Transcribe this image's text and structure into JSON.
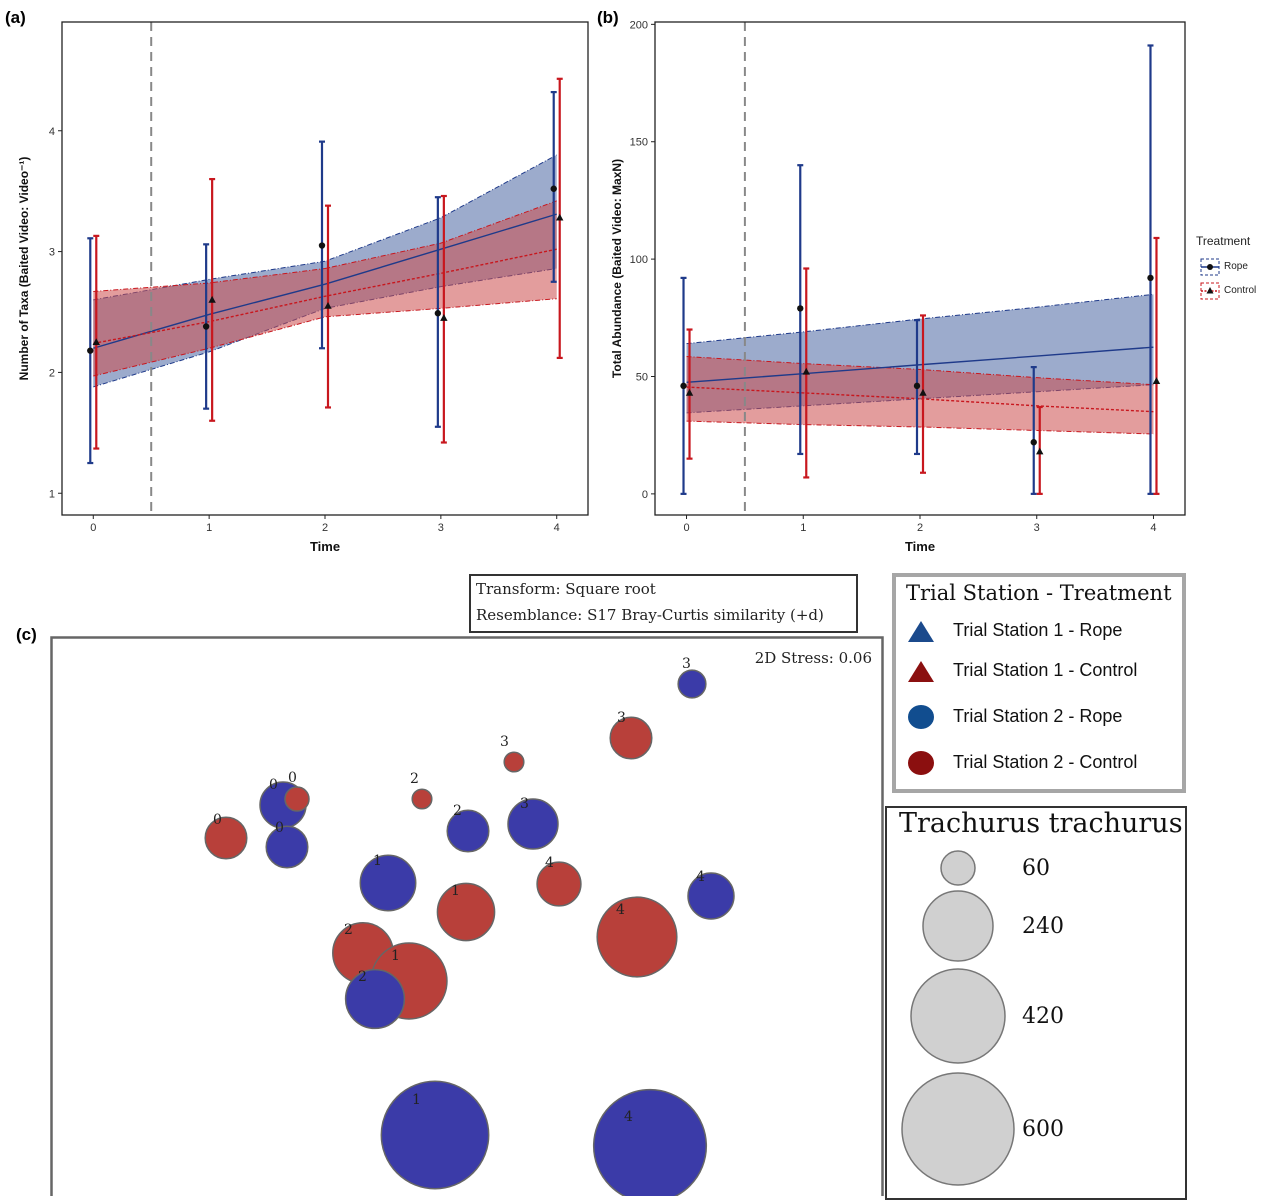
{
  "panels": {
    "a": {
      "label": "(a)"
    },
    "b": {
      "label": "(b)"
    },
    "c": {
      "label": "(c)"
    }
  },
  "colors": {
    "rope": "#1f3a8a",
    "control": "#c8171e",
    "rope_fill": "#4a66a3",
    "control_fill": "#cc4d4d",
    "nmds_rope": "#3b3ba8",
    "nmds_control": "#b8403a",
    "legend_rope": "#1b4a8c",
    "legend_control": "#8b1010",
    "station2_rope": "#114d8f",
    "station2_control": "#8b0f0f"
  },
  "legend_a_b": {
    "title": "Treatment",
    "items": [
      {
        "label": "Rope",
        "marker": "circle"
      },
      {
        "label": "Control",
        "marker": "triangle"
      }
    ]
  },
  "nmds_info": {
    "transform": "Transform: Square root",
    "resemblance": "Resemblance: S17 Bray-Curtis similarity (+d)",
    "stress": "2D Stress: 0.06"
  },
  "nmds_legend": {
    "title": "Trial Station - Treatment",
    "items": [
      {
        "label": "Trial Station 1 - Rope",
        "marker": "triangle-icon",
        "color": "#1b4a8c"
      },
      {
        "label": "Trial Station 1 - Control",
        "marker": "triangle-icon",
        "color": "#8b1010"
      },
      {
        "label": "Trial Station 2 - Rope",
        "marker": "circle-icon",
        "color": "#114d8f"
      },
      {
        "label": "Trial Station 2 - Control",
        "marker": "circle-icon",
        "color": "#8b0f0f"
      }
    ]
  },
  "size_legend": {
    "title": "Trachurus trachurus",
    "entries": [
      {
        "value": 60,
        "label": "60"
      },
      {
        "value": 240,
        "label": "240"
      },
      {
        "value": 420,
        "label": "420"
      },
      {
        "value": 600,
        "label": "600"
      }
    ]
  },
  "chart_data": [
    {
      "id": "a",
      "type": "line",
      "xlabel": "Time",
      "ylabel": "Number of Taxa (Baited Video: Video⁻¹)",
      "xlim": [
        -0.27,
        4.27
      ],
      "ylim": [
        0.82,
        4.9
      ],
      "xticks": [
        0,
        1,
        2,
        3,
        4
      ],
      "yticks": [
        1,
        2,
        3,
        4
      ],
      "vline": 0.5,
      "grid": false,
      "legend_position": "right",
      "series": [
        {
          "name": "Rope",
          "x": [
            0,
            1,
            2,
            3,
            4
          ],
          "mean": [
            2.18,
            2.38,
            3.05,
            2.49,
            3.52
          ],
          "lower": [
            1.25,
            1.7,
            2.2,
            1.55,
            2.75
          ],
          "upper": [
            3.11,
            3.06,
            3.91,
            3.45,
            4.32
          ],
          "fit": [
            2.2,
            2.48,
            2.73,
            3.02,
            3.31
          ],
          "band_lower": [
            1.88,
            2.17,
            2.53,
            2.71,
            2.86
          ],
          "band_upper": [
            2.6,
            2.77,
            2.92,
            3.28,
            3.8
          ]
        },
        {
          "name": "Control",
          "x": [
            0,
            1,
            2,
            3,
            4
          ],
          "mean": [
            2.25,
            2.6,
            2.55,
            2.45,
            3.28
          ],
          "lower": [
            1.37,
            1.6,
            1.71,
            1.42,
            2.12
          ],
          "upper": [
            3.13,
            3.6,
            3.38,
            3.46,
            4.43
          ],
          "fit": [
            2.24,
            2.42,
            2.63,
            2.82,
            3.02
          ],
          "band_lower": [
            1.97,
            2.2,
            2.46,
            2.53,
            2.61
          ],
          "band_upper": [
            2.67,
            2.74,
            2.86,
            3.07,
            3.42
          ]
        }
      ]
    },
    {
      "id": "b",
      "type": "line",
      "xlabel": "Time",
      "ylabel": "Total Abundance (Baited Video: MaxN)",
      "xlim": [
        -0.27,
        4.27
      ],
      "ylim": [
        -9,
        201
      ],
      "xticks": [
        0,
        1,
        2,
        3,
        4
      ],
      "yticks": [
        0,
        50,
        100,
        150,
        200
      ],
      "vline": 0.5,
      "grid": false,
      "legend_position": "right",
      "series": [
        {
          "name": "Rope",
          "x": [
            0,
            1,
            2,
            3,
            4
          ],
          "mean": [
            46,
            79,
            46,
            22,
            92
          ],
          "lower": [
            0,
            17,
            17,
            0,
            0
          ],
          "upper": [
            92,
            140,
            74,
            54,
            191
          ],
          "fit": [
            47.5,
            51.2,
            55,
            58.7,
            62.5
          ],
          "band_lower": [
            34.5,
            37.5,
            40.5,
            43.5,
            46.5
          ],
          "band_upper": [
            64,
            69,
            74.5,
            79.5,
            85
          ]
        },
        {
          "name": "Control",
          "x": [
            0,
            1,
            2,
            3,
            4
          ],
          "mean": [
            43,
            52,
            43,
            18,
            48
          ],
          "lower": [
            15,
            7,
            9,
            0,
            0
          ],
          "upper": [
            70,
            96,
            76,
            37,
            109
          ],
          "fit": [
            45.5,
            43,
            40.5,
            37.5,
            35
          ],
          "band_lower": [
            31,
            29.5,
            28.5,
            27,
            25.5
          ],
          "band_upper": [
            58.5,
            55.5,
            53,
            49.5,
            46.5
          ]
        }
      ]
    },
    {
      "id": "c",
      "type": "scatter",
      "title": "2D Stress: 0.06",
      "size_variable": "Trachurus trachurus",
      "points": [
        {
          "group": "rope",
          "label": "3",
          "abundance": 20
        },
        {
          "group": "control",
          "label": "3",
          "abundance": 45
        },
        {
          "group": "control",
          "label": "3",
          "abundance": 10
        },
        {
          "group": "rope",
          "label": "0",
          "abundance": 55
        },
        {
          "group": "control",
          "label": "0",
          "abundance": 15
        },
        {
          "group": "control",
          "label": "2",
          "abundance": 10
        },
        {
          "group": "rope",
          "label": "2",
          "abundance": 45
        },
        {
          "group": "rope",
          "label": "3",
          "abundance": 65
        },
        {
          "group": "control",
          "label": "0",
          "abundance": 45
        },
        {
          "group": "rope",
          "label": "0",
          "abundance": 45
        },
        {
          "group": "rope",
          "label": "1",
          "abundance": 80
        },
        {
          "group": "control",
          "label": "4",
          "abundance": 50
        },
        {
          "group": "control",
          "label": "1",
          "abundance": 85
        },
        {
          "group": "rope",
          "label": "4",
          "abundance": 55
        },
        {
          "group": "control",
          "label": "4",
          "abundance": 165
        },
        {
          "group": "control",
          "label": "2",
          "abundance": 95
        },
        {
          "group": "control",
          "label": "1",
          "abundance": 150
        },
        {
          "group": "rope",
          "label": "2",
          "abundance": 90
        },
        {
          "group": "rope",
          "label": "1",
          "abundance": 300
        },
        {
          "group": "rope",
          "label": "4",
          "abundance": 330
        }
      ]
    }
  ]
}
